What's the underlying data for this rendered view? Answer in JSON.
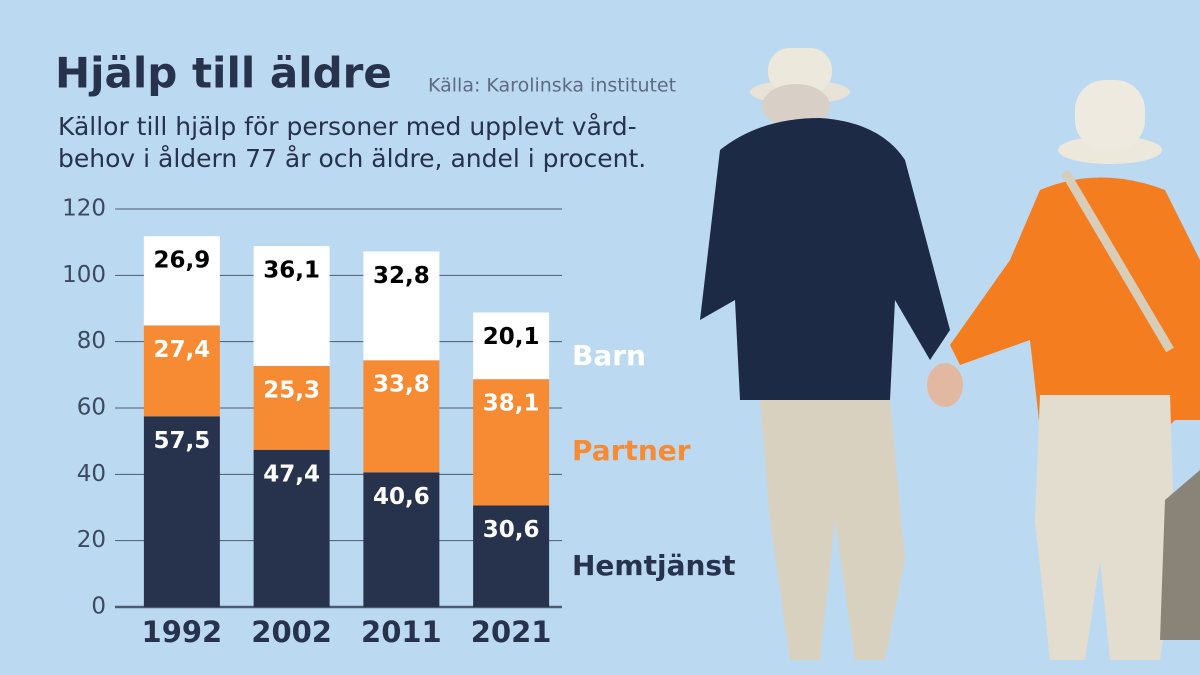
{
  "chart_data": {
    "type": "stacked_bar",
    "title": "Hjälp till äldre",
    "source": "Källa: Karolinska institutet",
    "subtitle": [
      "Källor till hjälp för personer med upplevt vård-",
      "behov i åldern 77 år och äldre, andel i procent."
    ],
    "categories": [
      "1992",
      "2002",
      "2011",
      "2021"
    ],
    "series": [
      {
        "name": "Hemtjänst",
        "color": "#27324c",
        "values": [
          57.5,
          47.4,
          40.6,
          30.6
        ],
        "value_labels": [
          "57,5",
          "47,4",
          "40,6",
          "30,6"
        ]
      },
      {
        "name": "Partner",
        "color": "#f68b33",
        "values": [
          27.4,
          25.3,
          33.8,
          38.1
        ],
        "value_labels": [
          "27,4",
          "25,3",
          "33,8",
          "38,1"
        ]
      },
      {
        "name": "Barn",
        "color": "#ffffff",
        "values": [
          26.9,
          36.1,
          32.8,
          20.1
        ],
        "value_labels": [
          "26,9",
          "36,1",
          "32,8",
          "20,1"
        ]
      }
    ],
    "ylim": [
      0,
      120
    ],
    "yticks": [
      0,
      20,
      40,
      60,
      80,
      100,
      120
    ],
    "grid": true
  }
}
